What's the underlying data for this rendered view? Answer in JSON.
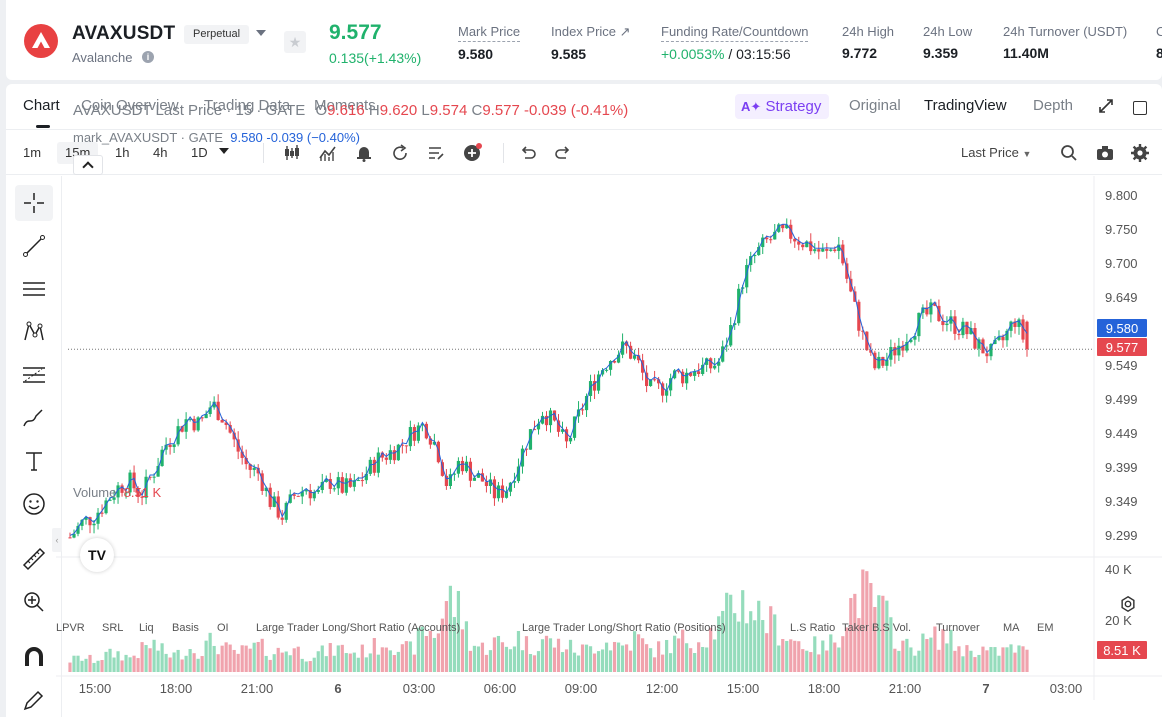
{
  "ticker": {
    "symbol": "AVAXUSDT",
    "contract_type": "Perpetual",
    "coin_name": "Avalanche",
    "last_price": "9.577",
    "change": "0.135(+1.43%)",
    "stats": [
      {
        "label": "Mark Price",
        "value": "9.580"
      },
      {
        "label": "Index Price ↗",
        "value": "9.585"
      },
      {
        "label": "Funding Rate/Countdown",
        "value_rate": "+0.0053%",
        "value_countdown": "/ 03:15:56"
      },
      {
        "label": "24h High",
        "value": "9.772"
      },
      {
        "label": "24h Low",
        "value": "9.359"
      },
      {
        "label": "24h Turnover (USDT)",
        "value": "11.40M"
      },
      {
        "label": "C",
        "value": "8"
      }
    ]
  },
  "tabs": [
    "Chart",
    "Coin Overview",
    "Trading Data",
    "Moments"
  ],
  "view_tabs": {
    "strategy": "Strategy",
    "original": "Original",
    "tradingview": "TradingView",
    "depth": "Depth"
  },
  "toolbar": {
    "timeframes": [
      "1m",
      "15m",
      "1h",
      "4h",
      "1D"
    ],
    "active_timeframe": "15m",
    "price_type": "Last Price"
  },
  "legend": {
    "title": "AVAXUSDT Last Price · 15 · GATE",
    "o_label": "O",
    "o": "9.616",
    "h_label": "H",
    "h": "9.620",
    "l_label": "L",
    "l": "9.574",
    "c_label": "C",
    "c": "9.577",
    "chg": "-0.039 (-0.41%)",
    "mark_name": "mark_AVAXUSDT · GATE",
    "mark_values": "9.580  -0.039  (−0.40%)"
  },
  "volume_legend": {
    "label": "Volume",
    "value": "8.51 K"
  },
  "colors": {
    "up": "#20b26c",
    "down": "#e5474f",
    "mark_line": "#2563d9",
    "accent": "#7b3ff2"
  },
  "chart_data": {
    "type": "candlestick",
    "x_ticks": [
      "15:00",
      "18:00",
      "21:00",
      "6",
      "03:00",
      "06:00",
      "09:00",
      "12:00",
      "15:00",
      "18:00",
      "21:00",
      "7",
      "03:00"
    ],
    "y_ticks": [
      "9.800",
      "9.750",
      "9.700",
      "9.649",
      "9.599",
      "9.549",
      "9.499",
      "9.449",
      "9.399",
      "9.349",
      "9.299"
    ],
    "ylim": [
      9.285,
      9.81
    ],
    "volume_ticks": [
      "40 K",
      "20 K"
    ],
    "volume_max": 42,
    "mark_price_label": "9.580",
    "last_price_label": "9.577",
    "volume_label": "8.51 K",
    "close_path": [
      9.31,
      9.33,
      9.34,
      9.36,
      9.38,
      9.39,
      9.37,
      9.4,
      9.44,
      9.46,
      9.48,
      9.47,
      9.5,
      9.48,
      9.44,
      9.41,
      9.4,
      9.36,
      9.34,
      9.37,
      9.38,
      9.37,
      9.39,
      9.38,
      9.38,
      9.4,
      9.42,
      9.43,
      9.44,
      9.46,
      9.47,
      9.44,
      9.38,
      9.42,
      9.4,
      9.39,
      9.37,
      9.38,
      9.42,
      9.46,
      9.49,
      9.47,
      9.44,
      9.48,
      9.52,
      9.55,
      9.57,
      9.58,
      9.56,
      9.52,
      9.52,
      9.54,
      9.54,
      9.55,
      9.55,
      9.56,
      9.61,
      9.68,
      9.71,
      9.73,
      9.74,
      9.74,
      9.73,
      9.72,
      9.71,
      9.73,
      9.66,
      9.6,
      9.55,
      9.56,
      9.58,
      9.6,
      9.62,
      9.63,
      9.62,
      9.61,
      9.6,
      9.58,
      9.57,
      9.59,
      9.62,
      9.58
    ],
    "volume_path": [
      5,
      6,
      5,
      7,
      8,
      6,
      9,
      12,
      8,
      7,
      10,
      9,
      13,
      10,
      8,
      9,
      11,
      8,
      9,
      10,
      7,
      8,
      9,
      10,
      8,
      9,
      11,
      14,
      9,
      10,
      18,
      16,
      32,
      26,
      12,
      10,
      13,
      11,
      15,
      10,
      14,
      12,
      11,
      9,
      10,
      13,
      12,
      11,
      15,
      9,
      10,
      12,
      14,
      13,
      16,
      20,
      28,
      30,
      26,
      22,
      18,
      14,
      12,
      11,
      10,
      16,
      28,
      34,
      30,
      24,
      14,
      10,
      12,
      14,
      16,
      11,
      9,
      10,
      8,
      9,
      10,
      8
    ]
  },
  "indicators": [
    "LPVR",
    "SRL",
    "Liq",
    "Basis",
    "OI",
    "Large Trader Long/Short Ratio (Accounts)",
    "Large Trader Long/Short Ratio (Positions)",
    "L.S Ratio",
    "Taker B.S Vol.",
    "Turnover",
    "MA",
    "EM"
  ]
}
